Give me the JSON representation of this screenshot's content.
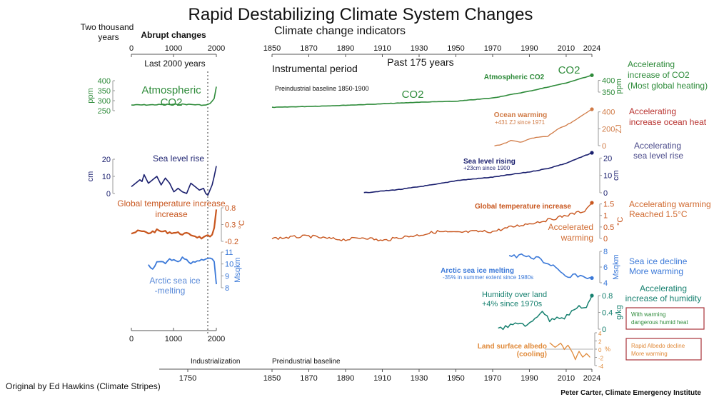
{
  "title": "Rapid Destabilizing Climate System Changes",
  "subtitle": "Climate change indicators",
  "left_panel": {
    "heading_two_thousand": [
      "Two thousand",
      "years"
    ],
    "heading_abrupt": "Abrupt changes",
    "axis_label": "Last 2000 years",
    "ticks": [
      "0",
      "1000",
      "2000"
    ],
    "bottom_ticks": [
      "0",
      "1000",
      "2000"
    ]
  },
  "right_panel": {
    "axis_title": "Past 175 years",
    "instrumental": "Instrumental period",
    "baseline_label": "Preindustrial baseline 1850-1900",
    "ticks": [
      "1850",
      "1870",
      "1890",
      "1910",
      "1930",
      "1950",
      "1970",
      "1990",
      "2010",
      "2024"
    ]
  },
  "bottom_axis": {
    "industrialization": "Industrialization",
    "preindustrial": "Preindustrial baseline",
    "ticks": [
      "1750",
      "1850",
      "1870",
      "1890",
      "1910",
      "1930",
      "1950",
      "1970",
      "1990",
      "2010",
      "2024"
    ]
  },
  "credits": {
    "left": "Original by Ed Hawkins (Climate Stripes)",
    "right": "Peter Carter, Climate  Emergency Institute"
  },
  "colors": {
    "co2": "#2e8b3a",
    "ocean": "#d07a45",
    "ocean_note": "#b8322f",
    "sea_level": "#1a1f6e",
    "sea_level_note": "#4a4a8a",
    "temperature": "#c8561e",
    "sea_ice": "#3a78d8",
    "humidity": "#16806f",
    "albedo": "#e08a3a",
    "box_border": "#a8323a"
  },
  "chart_data": [
    {
      "type": "line",
      "title": "Atmospheric CO2",
      "panel": "last 2000 years",
      "label_lines": [
        "Atmospheric",
        "CO2"
      ],
      "ylabel": "ppm",
      "yticks": [
        "400",
        "350",
        "300",
        "250"
      ],
      "ylim": [
        250,
        400
      ],
      "x": [
        0,
        200,
        400,
        600,
        800,
        1000,
        1200,
        1400,
        1600,
        1750,
        1800,
        1850,
        1900,
        1950,
        2000
      ],
      "values": [
        278,
        279,
        279,
        280,
        281,
        281,
        282,
        281,
        279,
        277,
        282,
        285,
        296,
        311,
        370
      ]
    },
    {
      "type": "line",
      "title": "Sea level rise",
      "panel": "last 2000 years",
      "ylabel": "cm",
      "yticks": [
        "20",
        "10",
        "0"
      ],
      "ylim": [
        0,
        20
      ],
      "x": [
        0,
        100,
        200,
        250,
        300,
        400,
        500,
        600,
        700,
        800,
        900,
        1000,
        1100,
        1200,
        1300,
        1400,
        1500,
        1600,
        1700,
        1750,
        1800,
        1850,
        1900,
        1950,
        2000
      ],
      "values": [
        4,
        6,
        8,
        7,
        11,
        6,
        8,
        10,
        5,
        9,
        6,
        1,
        3,
        1,
        0,
        6,
        4,
        2,
        3,
        0,
        -1,
        2,
        5,
        10,
        16
      ]
    },
    {
      "type": "line",
      "title": "Global temperature increase",
      "panel": "last 2000 years",
      "ylabel": "°C",
      "yticks": [
        "0.8",
        "0.3",
        "-0.2"
      ],
      "ylim": [
        -0.2,
        0.8
      ],
      "x": [
        0,
        200,
        400,
        600,
        800,
        1000,
        1200,
        1400,
        1600,
        1700,
        1800,
        1850,
        1900,
        1950,
        2000
      ],
      "values": [
        0.05,
        0.1,
        0.05,
        0.12,
        0.08,
        0.06,
        0.03,
        0.0,
        -0.08,
        -0.1,
        -0.05,
        -0.1,
        0.0,
        0.2,
        0.75
      ]
    },
    {
      "type": "line",
      "title": "Arctic sea ice -melting",
      "panel": "last 2000 years",
      "label_lines": [
        "Arctic sea ice",
        "-melting"
      ],
      "ylabel": "Msqkm",
      "yticks": [
        "11",
        "10",
        "9",
        "8"
      ],
      "ylim": [
        8,
        11
      ],
      "x": [
        400,
        500,
        600,
        700,
        800,
        900,
        1000,
        1100,
        1200,
        1300,
        1400,
        1500,
        1600,
        1700,
        1800,
        1900,
        1950,
        2000
      ],
      "values": [
        10.0,
        9.5,
        10.1,
        10.2,
        10.0,
        10.4,
        10.3,
        10.1,
        10.5,
        10.3,
        10.0,
        10.2,
        10.3,
        10.4,
        10.5,
        10.4,
        10.2,
        8.3
      ]
    },
    {
      "type": "line",
      "title": "Atmospheric CO2",
      "panel": "past 175 years",
      "inline_label": "CO2",
      "end_label": "CO2",
      "ylabel": "ppm",
      "yticks": [
        "400",
        "350"
      ],
      "ylim": [
        280,
        420
      ],
      "x": [
        1850,
        1870,
        1890,
        1910,
        1930,
        1950,
        1970,
        1990,
        2010,
        2024
      ],
      "values": [
        285,
        289,
        294,
        300,
        307,
        311,
        325,
        354,
        389,
        422
      ],
      "annotation": [
        "Accelerating",
        "increase of CO2",
        "(Most global heating)"
      ]
    },
    {
      "type": "line",
      "title": "Ocean warming",
      "panel": "past 175 years",
      "note": "+431 ZJ since 1971",
      "ylabel": "ZJ",
      "yticks": [
        "400",
        "200",
        "0"
      ],
      "ylim": [
        0,
        431
      ],
      "x": [
        1971,
        1975,
        1980,
        1985,
        1990,
        1995,
        2000,
        2005,
        2010,
        2015,
        2020,
        2024
      ],
      "values": [
        0,
        15,
        60,
        40,
        80,
        100,
        110,
        190,
        240,
        300,
        380,
        431
      ],
      "annotation": [
        "Accelerating",
        "increase ocean heat"
      ]
    },
    {
      "type": "line",
      "title": "Sea level rising",
      "panel": "past 175 years",
      "note": "+23cm since 1900",
      "ylabel": "cm",
      "yticks": [
        "20",
        "10",
        "0"
      ],
      "ylim": [
        0,
        23
      ],
      "x": [
        1900,
        1910,
        1920,
        1930,
        1940,
        1950,
        1960,
        1970,
        1980,
        1990,
        2000,
        2010,
        2024
      ],
      "values": [
        0,
        1,
        2,
        3.5,
        5,
        7,
        8,
        9,
        10.5,
        12,
        14,
        17,
        23
      ],
      "annotation": [
        "Accelerating",
        "sea level rise"
      ]
    },
    {
      "type": "line",
      "title": "Global temperature increase",
      "panel": "past 175 years",
      "side_label": [
        "Accelerated",
        "warming"
      ],
      "ylabel": "°C",
      "yticks": [
        "1.5",
        "1",
        "0.5",
        "0"
      ],
      "ylim": [
        0,
        1.55
      ],
      "x": [
        1850,
        1860,
        1870,
        1880,
        1890,
        1900,
        1910,
        1920,
        1930,
        1940,
        1950,
        1960,
        1970,
        1980,
        1990,
        2000,
        2010,
        2020,
        2024
      ],
      "values": [
        0.0,
        0.05,
        0.1,
        0.0,
        -0.05,
        0.05,
        -0.1,
        0.05,
        0.15,
        0.3,
        0.25,
        0.3,
        0.3,
        0.5,
        0.65,
        0.8,
        1.0,
        1.2,
        1.55
      ],
      "annotation": [
        "Accelerating warming",
        "Reached 1.5°C"
      ]
    },
    {
      "type": "line",
      "title": "Arctic sea ice melting",
      "panel": "past 175 years",
      "note": "-35% in summer extent since 1980s",
      "ylabel": "Msqkm",
      "yticks": [
        "8",
        "6",
        "4"
      ],
      "ylim": [
        4,
        8
      ],
      "x": [
        1979,
        1983,
        1987,
        1991,
        1995,
        1999,
        2003,
        2007,
        2011,
        2015,
        2019,
        2024
      ],
      "values": [
        7.5,
        7.3,
        7.6,
        7.0,
        7.2,
        6.5,
        6.2,
        5.2,
        4.6,
        5.0,
        4.8,
        4.6
      ],
      "annotation": [
        "Sea ice decline",
        "More warming"
      ]
    },
    {
      "type": "line",
      "title": "Humidity over land",
      "panel": "past 175 years",
      "note": "+4% since 1970s",
      "ylabel": "g/kg",
      "yticks": [
        "0.8",
        "0.4",
        "0"
      ],
      "ylim": [
        0,
        0.8
      ],
      "x": [
        1973,
        1977,
        1981,
        1985,
        1989,
        1993,
        1997,
        2001,
        2005,
        2009,
        2013,
        2017,
        2021,
        2024
      ],
      "values": [
        0.0,
        0.05,
        0.1,
        0.15,
        0.08,
        0.25,
        0.45,
        0.2,
        0.3,
        0.28,
        0.4,
        0.55,
        0.5,
        0.8
      ],
      "annotation": [
        "Accelerating",
        "increase of humidity"
      ],
      "box_note": [
        "With warming",
        "dangerous humid heat"
      ]
    },
    {
      "type": "line",
      "title": "Land surface albedo (cooling)",
      "panel": "past 175 years",
      "label_lines": [
        "Land surface albedo",
        "(cooling)"
      ],
      "ylabel": "%",
      "yticks": [
        "4",
        "2",
        "0",
        "-2",
        "-4"
      ],
      "ylim": [
        -4,
        4
      ],
      "x": [
        2001,
        2004,
        2007,
        2009,
        2011,
        2013,
        2015,
        2017,
        2019,
        2021,
        2023
      ],
      "values": [
        1.5,
        0.5,
        1.5,
        0.0,
        1.0,
        -0.5,
        -2.5,
        -0.5,
        -2.0,
        -1.0,
        -2.0
      ],
      "box_note": [
        "Rapid Albedo decline",
        "More warming"
      ]
    }
  ]
}
